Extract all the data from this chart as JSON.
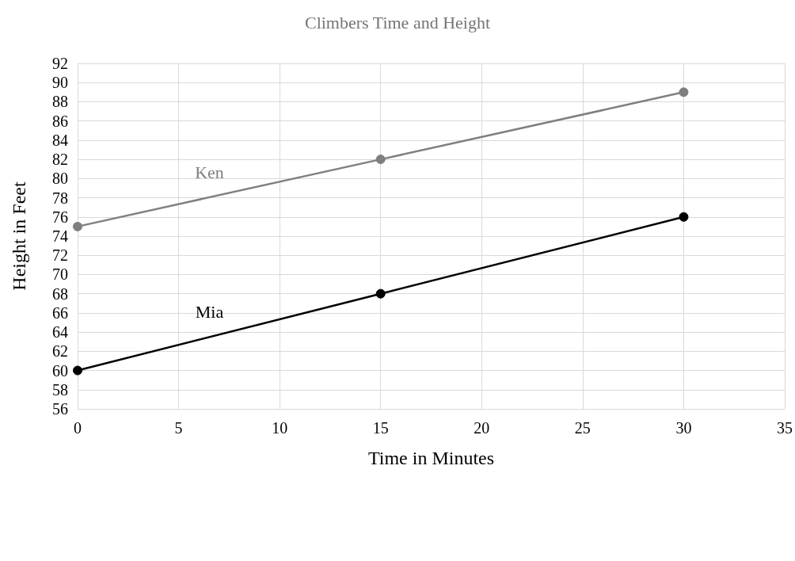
{
  "chart_data": {
    "type": "line",
    "title": "Climbers Time and Height",
    "xlabel": "Time in Minutes",
    "ylabel": "Height in Feet",
    "x": [
      0,
      15,
      30
    ],
    "series": [
      {
        "name": "Ken",
        "color": "#7f7f7f",
        "values": [
          75,
          82,
          89
        ]
      },
      {
        "name": "Mia",
        "color": "#000000",
        "values": [
          60,
          68,
          76
        ]
      }
    ],
    "xlim": [
      0,
      35
    ],
    "xticks": [
      0,
      5,
      10,
      15,
      20,
      25,
      30,
      35
    ],
    "ylim": [
      56,
      92
    ],
    "yticks": [
      56,
      58,
      60,
      62,
      64,
      66,
      68,
      70,
      72,
      74,
      76,
      78,
      80,
      82,
      84,
      86,
      88,
      90,
      92
    ],
    "grid": true,
    "legend": false,
    "marker": "circle",
    "line_style": "solid"
  }
}
